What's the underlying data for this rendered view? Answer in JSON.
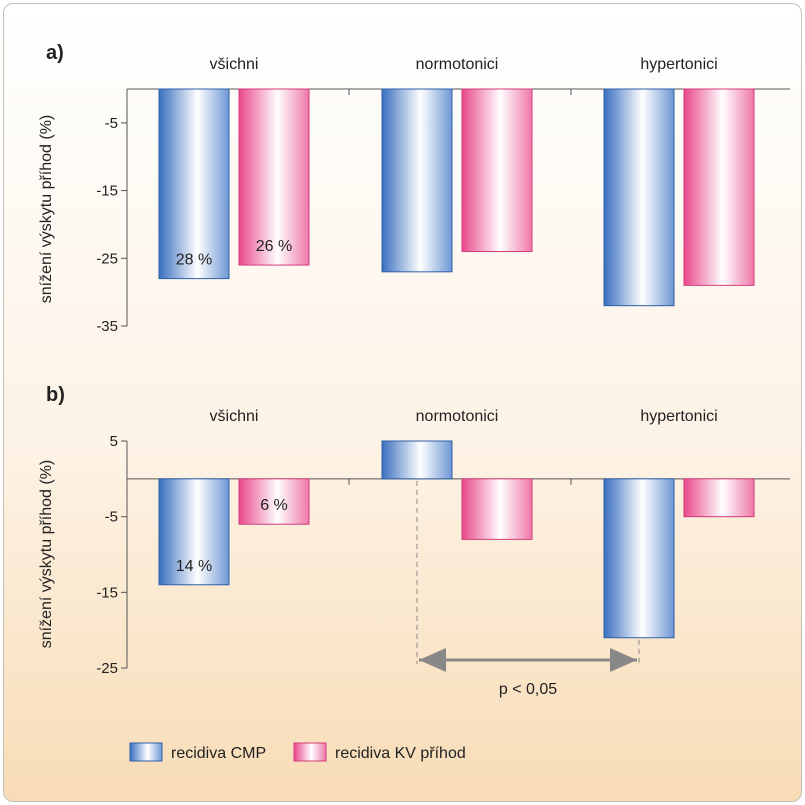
{
  "chart_data": [
    {
      "type": "bar",
      "panel_label": "a)",
      "categories": [
        "všichni",
        "normotonici",
        "hypertonici"
      ],
      "ylabel": "snížení výskytu příhod (%)",
      "ylim": [
        -35,
        0
      ],
      "yticks": [
        "-5",
        "-15",
        "-25",
        "-35"
      ],
      "series": [
        {
          "name": "recidiva CMP",
          "values": [
            -28,
            -27,
            -32
          ],
          "labels": [
            "28 %",
            "",
            ""
          ]
        },
        {
          "name": "recidiva KV příhod",
          "values": [
            -26,
            -24,
            -29
          ],
          "labels": [
            "26 %",
            "",
            ""
          ]
        }
      ]
    },
    {
      "type": "bar",
      "panel_label": "b)",
      "categories": [
        "všichni",
        "normotonici",
        "hypertonici"
      ],
      "ylabel": "snížení výskytu příhod (%)",
      "ylim": [
        -25,
        5
      ],
      "yticks": [
        "5",
        "-5",
        "-15",
        "-25"
      ],
      "series": [
        {
          "name": "recidiva CMP",
          "values": [
            -14,
            5,
            -21
          ],
          "labels": [
            "14 %",
            "",
            ""
          ]
        },
        {
          "name": "recidiva KV příhod",
          "values": [
            -6,
            -8,
            -5
          ],
          "labels": [
            "6 %",
            "",
            ""
          ]
        }
      ],
      "annotation": "p < 0,05"
    }
  ],
  "legend": [
    {
      "label": "recidiva CMP"
    },
    {
      "label": "recidiva KV příhod"
    }
  ],
  "colors": {
    "cmp_edge": "#3a6fbf",
    "cmp_mid": "#ffffff",
    "kv_edge": "#e8488a",
    "kv_mid": "#ffffff",
    "axis": "#555555"
  }
}
